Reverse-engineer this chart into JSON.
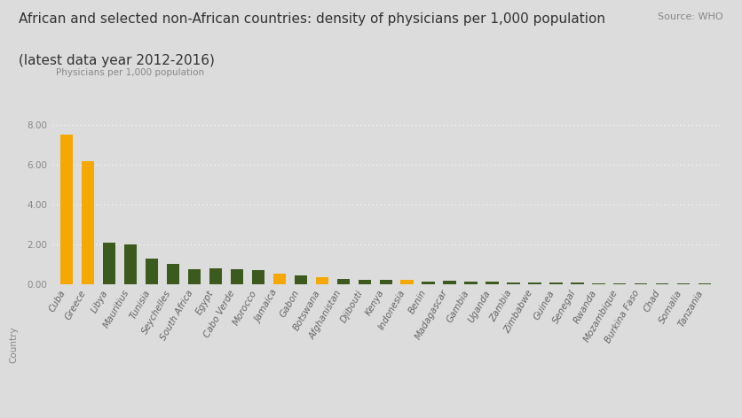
{
  "title_line1": "African and selected non-African countries: density of physicians per 1,000 population",
  "title_line2": "(latest data year 2012-2016)",
  "source": "Source: WHO",
  "ylabel": "Physicians per 1,000 population",
  "xlabel": "Country",
  "background_color": "#dcdcdc",
  "plot_bg_color": "#dcdcdc",
  "ylim": [
    0,
    8.8
  ],
  "yticks": [
    0.0,
    2.0,
    4.0,
    6.0,
    8.0
  ],
  "countries": [
    "Cuba",
    "Greece",
    "Libya",
    "Mauritius",
    "Tunisia",
    "Seychelles",
    "South Africa",
    "Egypt",
    "Cabo Verde",
    "Morocco",
    "Jamaica",
    "Gabon",
    "Botswana",
    "Afghanistan",
    "Djibouti",
    "Kenya",
    "Indonesia",
    "Benin",
    "Madagascar",
    "Gambia",
    "Uganda",
    "Zambia",
    "Zimbabwe",
    "Guinea",
    "Senegal",
    "Rwanda",
    "Mozambique",
    "Burkina Faso",
    "Chad",
    "Somalia",
    "Tanzania"
  ],
  "values": [
    7.52,
    6.17,
    2.09,
    1.99,
    1.27,
    1.02,
    0.77,
    0.79,
    0.77,
    0.73,
    0.53,
    0.42,
    0.37,
    0.28,
    0.23,
    0.2,
    0.2,
    0.15,
    0.18,
    0.11,
    0.12,
    0.09,
    0.08,
    0.08,
    0.07,
    0.06,
    0.04,
    0.05,
    0.04,
    0.03,
    0.03
  ],
  "colors": [
    "#f5a800",
    "#f5a800",
    "#3d5a1e",
    "#3d5a1e",
    "#3d5a1e",
    "#3d5a1e",
    "#3d5a1e",
    "#3d5a1e",
    "#3d5a1e",
    "#3d5a1e",
    "#f5a800",
    "#3d5a1e",
    "#f5a800",
    "#3d5a1e",
    "#3d5a1e",
    "#3d5a1e",
    "#f5a800",
    "#3d5a1e",
    "#3d5a1e",
    "#3d5a1e",
    "#3d5a1e",
    "#3d5a1e",
    "#3d5a1e",
    "#3d5a1e",
    "#3d5a1e",
    "#3d5a1e",
    "#3d5a1e",
    "#3d5a1e",
    "#3d5a1e",
    "#3d5a1e",
    "#3d5a1e"
  ],
  "title_fontsize": 11,
  "source_fontsize": 8,
  "axis_label_fontsize": 7.5,
  "tick_fontsize": 7.5
}
